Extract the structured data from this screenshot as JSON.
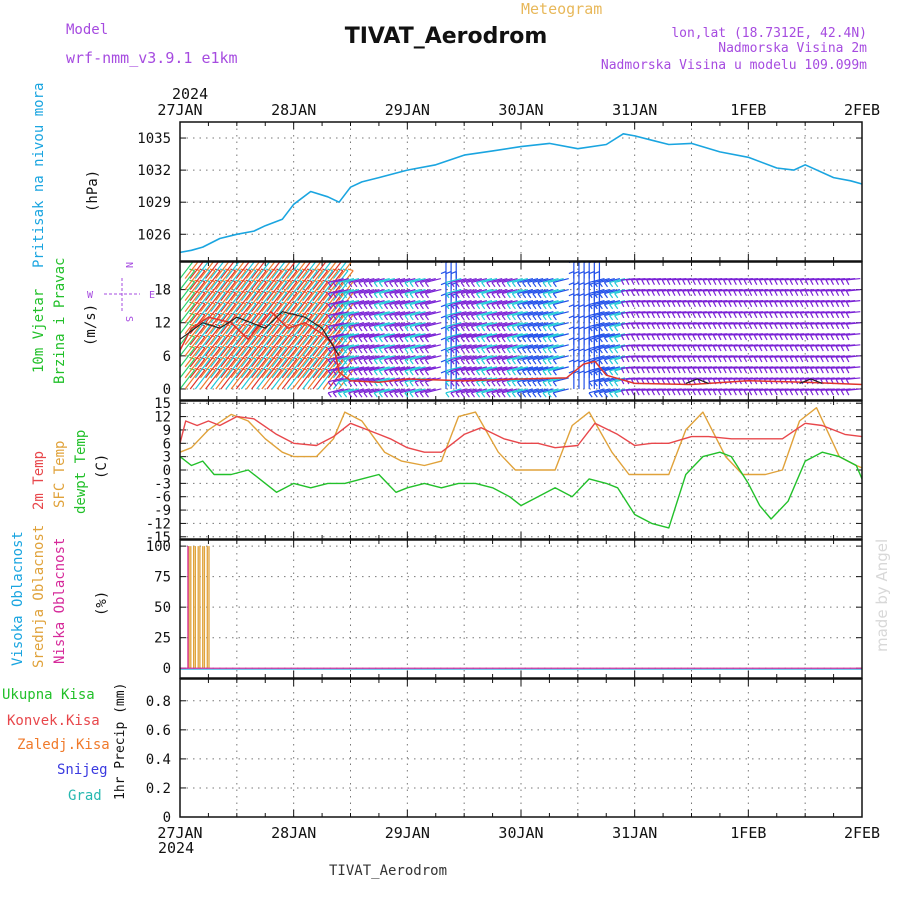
{
  "header": {
    "model_label": "Model",
    "model_name": "wrf-nmm_v3.9.1  e1km",
    "product": "Meteogram",
    "station": "TIVAT_Aerodrom",
    "lonlat": "lon,lat (18.7312E, 42.4N)",
    "elevation": "Nadmorska Visina 2m",
    "model_elevation": "Nadmorska Visina u modelu 109.099m",
    "watermark": "made by Angel",
    "footer_station": "TIVAT_Aerodrom"
  },
  "time_axis": {
    "year": "2024",
    "ticks": [
      "27JAN",
      "28JAN",
      "29JAN",
      "30JAN",
      "31JAN",
      "1FEB",
      "2FEB"
    ]
  },
  "colors": {
    "pressure": "#1aa5e0",
    "temp2m": "#e8474b",
    "sfc_temp": "#e0a23a",
    "dewpt": "#22c02a",
    "wind_speed": "#e0342b",
    "gust": "#222222",
    "wind_calm": "#7a22d6",
    "wind_moderate": "#2150ea",
    "wind_fresh": "#1ec7d8",
    "wind_strong": "#2bd36c",
    "wind_gale": "#f07a2a",
    "high_cloud": "#1aa5e0",
    "mid_cloud": "#e0a23a",
    "low_cloud": "#d62a9a",
    "total_precip": "#22c02a",
    "conv_precip": "#e8474b",
    "frozen_precip": "#f07a2a",
    "snow": "#3a3ae0",
    "hail": "#26b8b0"
  },
  "panels": {
    "pressure": {
      "label_main": "Pritisak na nivou mora",
      "unit": "(hPa)",
      "ticks": [
        "1026",
        "1029",
        "1032",
        "1035"
      ]
    },
    "wind": {
      "label1": "10m Vjetar",
      "label2": "Brzina i Pravac",
      "unit": "(m/s)",
      "ticks": [
        "0",
        "6",
        "12",
        "18"
      ],
      "compass": {
        "n": "N",
        "e": "E",
        "s": "S",
        "w": "W"
      }
    },
    "temp": {
      "label_2m": "2m Temp",
      "label_sfc": "SFC Temp",
      "label_dew": "dewpt Temp",
      "unit": "(C)",
      "ticks": [
        "-15",
        "-12",
        "-9",
        "-6",
        "-3",
        "0",
        "3",
        "6",
        "9",
        "12",
        "15"
      ]
    },
    "cloud": {
      "label_high": "Visoka Oblacnost",
      "label_mid": "Srednja Oblacnost",
      "label_low": "Niska Oblacnost",
      "unit": "(%)",
      "ticks": [
        "0",
        "25",
        "50",
        "75",
        "100"
      ]
    },
    "precip": {
      "label_total": "Ukupna Kisa",
      "label_conv": "Konvek.Kisa",
      "label_frozen": "Zaledj.Kisa",
      "label_snow": "Snijeg",
      "label_hail": "Grad",
      "ylabel": "1hr Precip (mm)",
      "ticks": [
        "0",
        "0.2",
        "0.4",
        "0.6",
        "0.8"
      ]
    }
  },
  "chart_data": [
    {
      "type": "line",
      "title": "Pritisak na nivou mora",
      "ylabel": "(hPa)",
      "ylim": [
        1023.5,
        1036.5
      ],
      "x_unit": "days since 27JAN 00Z",
      "xlim": [
        0,
        6
      ],
      "series": [
        {
          "x": [
            0,
            0.1,
            0.2,
            0.35,
            0.5,
            0.65,
            0.75,
            0.9,
            1.0,
            1.15,
            1.3,
            1.4,
            1.5,
            1.6,
            1.75,
            2.0,
            2.25,
            2.5,
            2.75,
            3.0,
            3.25,
            3.5,
            3.75,
            3.9,
            4.0,
            4.15,
            4.3,
            4.5,
            4.75,
            5.0,
            5.25,
            5.4,
            5.5,
            5.75,
            5.9,
            6.0
          ],
          "values": [
            1024.3,
            1024.5,
            1024.8,
            1025.6,
            1026.0,
            1026.3,
            1026.8,
            1027.4,
            1028.8,
            1030.0,
            1029.5,
            1029.0,
            1030.4,
            1030.9,
            1031.3,
            1032.0,
            1032.5,
            1033.4,
            1033.8,
            1034.2,
            1034.5,
            1034.0,
            1034.4,
            1035.4,
            1035.2,
            1034.8,
            1034.4,
            1034.5,
            1033.7,
            1033.2,
            1032.2,
            1032.0,
            1032.5,
            1031.3,
            1031.0,
            1030.7
          ]
        }
      ]
    },
    {
      "type": "line",
      "title": "10m Vjetar Brzina i Pravac",
      "ylabel": "(m/s)",
      "ylim": [
        -2,
        23
      ],
      "x_unit": "days since 27JAN 00Z",
      "xlim": [
        0,
        6
      ],
      "series": [
        {
          "x": [
            0,
            0.1,
            0.25,
            0.45,
            0.6,
            0.8,
            0.95,
            1.1,
            1.25,
            1.35,
            1.4,
            1.5,
            1.75,
            2.0,
            2.5,
            3.0,
            3.4,
            3.55,
            3.65,
            3.75,
            4.0,
            4.5,
            5.0,
            5.5,
            6.0
          ],
          "values": [
            7,
            11,
            13,
            12,
            9,
            14,
            11,
            12,
            10,
            8,
            3,
            1.5,
            1.2,
            1.8,
            1.5,
            1.8,
            2.0,
            4.5,
            5.0,
            2.5,
            1.0,
            0.8,
            1.5,
            1.2,
            0.8
          ]
        },
        {
          "x": [
            0,
            0.2,
            0.35,
            0.5,
            0.75,
            0.9,
            1.1,
            1.25,
            1.4,
            4.45,
            4.55,
            4.65,
            5.45,
            5.55,
            5.65
          ],
          "values": [
            9,
            12,
            11,
            13,
            11,
            14,
            13,
            11,
            6,
            1.0,
            1.8,
            1.0,
            1.0,
            1.8,
            1.0
          ]
        }
      ]
    },
    {
      "type": "line",
      "title": "2m Temp / SFC Temp / dewpt Temp",
      "ylabel": "(C)",
      "ylim": [
        -15.5,
        15.5
      ],
      "x_unit": "days since 27JAN 00Z",
      "xlim": [
        0,
        6
      ],
      "series": [
        {
          "x": [
            0,
            0.05,
            0.15,
            0.25,
            0.35,
            0.5,
            0.65,
            0.85,
            1.0,
            1.2,
            1.35,
            1.5,
            1.65,
            1.85,
            2.0,
            2.15,
            2.3,
            2.5,
            2.65,
            2.85,
            3.0,
            3.15,
            3.3,
            3.5,
            3.65,
            3.85,
            4.0,
            4.15,
            4.3,
            4.5,
            4.65,
            4.85,
            5.0,
            5.15,
            5.3,
            5.5,
            5.65,
            5.85,
            6.0
          ],
          "values": [
            6,
            11,
            10,
            11,
            10,
            12,
            11.5,
            8,
            6,
            5.5,
            7.5,
            10.5,
            9,
            7,
            5,
            4,
            4,
            8,
            9.5,
            7,
            6,
            6,
            5,
            5.5,
            10.5,
            8,
            5.5,
            6,
            6,
            7.5,
            7.5,
            7,
            7,
            7,
            7,
            10.5,
            10,
            8,
            7.5
          ]
        },
        {
          "x": [
            0,
            0.1,
            0.25,
            0.45,
            0.6,
            0.75,
            0.9,
            1.0,
            1.2,
            1.35,
            1.45,
            1.6,
            1.8,
            1.95,
            2.15,
            2.3,
            2.45,
            2.6,
            2.8,
            2.95,
            3.15,
            3.3,
            3.45,
            3.6,
            3.8,
            3.95,
            4.15,
            4.3,
            4.45,
            4.6,
            4.8,
            4.95,
            5.15,
            5.3,
            5.45,
            5.6,
            5.8,
            5.95,
            6.0
          ],
          "values": [
            4,
            5,
            9,
            12.5,
            11,
            7,
            4,
            3,
            3,
            7,
            13,
            11,
            4,
            2,
            1,
            2,
            12,
            13,
            4,
            0,
            0,
            0,
            10,
            13,
            4,
            -1,
            -1,
            -1,
            9,
            13,
            3,
            -1,
            -1,
            0,
            11,
            14,
            3,
            1,
            0.5
          ]
        },
        {
          "x": [
            0,
            0.1,
            0.2,
            0.3,
            0.45,
            0.6,
            0.75,
            0.85,
            1.0,
            1.15,
            1.3,
            1.45,
            1.6,
            1.75,
            1.9,
            2.0,
            2.15,
            2.3,
            2.45,
            2.6,
            2.75,
            2.9,
            3.0,
            3.15,
            3.3,
            3.45,
            3.6,
            3.75,
            3.85,
            4.0,
            4.15,
            4.3,
            4.45,
            4.6,
            4.75,
            4.85,
            5.0,
            5.1,
            5.2,
            5.35,
            5.5,
            5.65,
            5.8,
            5.95,
            6.0
          ],
          "values": [
            3,
            1,
            2,
            -1,
            -1,
            0,
            -3,
            -5,
            -3,
            -4,
            -3,
            -3,
            -2,
            -1,
            -5,
            -4,
            -3,
            -4,
            -3,
            -3,
            -4,
            -6,
            -8,
            -6,
            -4,
            -6,
            -2,
            -3,
            -4,
            -10,
            -12,
            -13,
            -1,
            3,
            4,
            3,
            -3,
            -8,
            -11,
            -7,
            2,
            4,
            3,
            1,
            -2
          ]
        }
      ]
    },
    {
      "type": "bar",
      "title": "Visoka / Srednja / Niska Oblacnost",
      "ylabel": "(%)",
      "ylim": [
        0,
        100
      ],
      "x_unit": "days since 27JAN 00Z",
      "xlim": [
        0,
        6
      ],
      "series": [
        {
          "x": [
            0.08,
            0.12,
            0.16,
            0.2,
            0.24
          ],
          "values": [
            100,
            100,
            100,
            100,
            100
          ]
        },
        {
          "x": [
            0.095,
            0.135,
            0.175,
            0.215,
            0.255
          ],
          "values": [
            100,
            100,
            100,
            100,
            100
          ]
        },
        {
          "x": [
            0.07
          ],
          "values": [
            100
          ]
        }
      ]
    },
    {
      "type": "bar",
      "title": "1hr Precip (mm)",
      "ylabel": "1hr Precip (mm)",
      "ylim": [
        0,
        0.95
      ],
      "x_unit": "days since 27JAN 00Z",
      "xlim": [
        0,
        6
      ],
      "series": []
    }
  ]
}
